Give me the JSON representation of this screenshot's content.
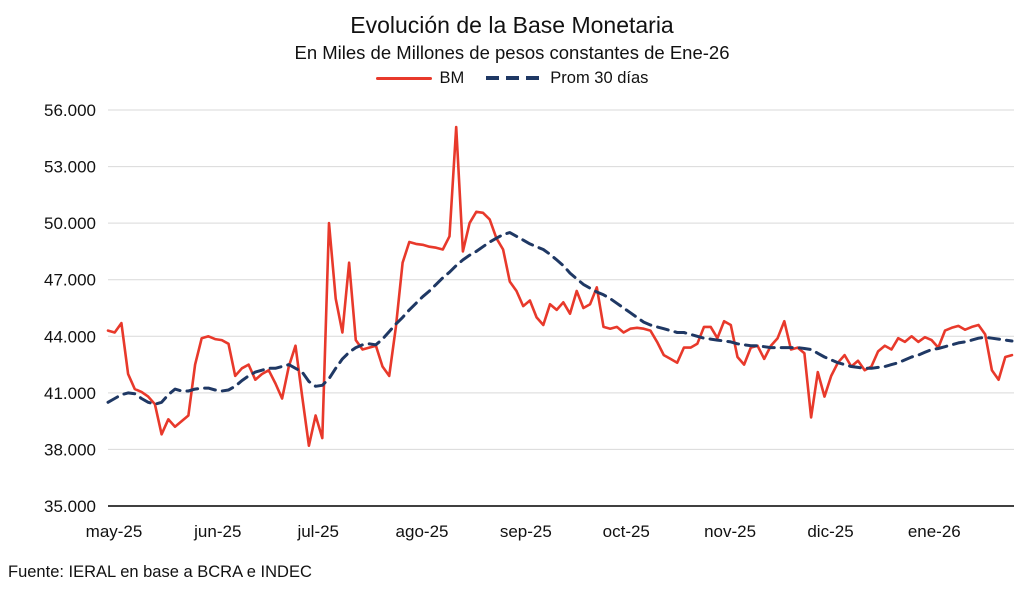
{
  "page": {
    "background": "#ffffff"
  },
  "header": {
    "title": "Evolución de la Base Monetaria",
    "subtitle": "En Miles de Millones de pesos constantes de Ene-26"
  },
  "footer": {
    "source": "Fuente: IERAL en base a BCRA e INDEC"
  },
  "colors": {
    "bm_red": "#E8392B",
    "prom_navy": "#1F3864",
    "gridline": "#D9D9D9",
    "axis_line": "#404040",
    "text": "#111111"
  },
  "chart_data": {
    "type": "line",
    "title": "Evolución de la Base Monetaria",
    "subtitle": "En Miles de Millones de pesos constantes de Ene-26",
    "grid": true,
    "legend_position": "top",
    "ylim": [
      35000,
      56000
    ],
    "y_ticks": [
      35000,
      38000,
      41000,
      44000,
      47000,
      50000,
      53000,
      56000
    ],
    "y_tick_labels": [
      "35.000",
      "38.000",
      "41.000",
      "44.000",
      "47.000",
      "50.000",
      "53.000",
      "56.000"
    ],
    "x_note": "daily series from may-2025 to late ene-2026, values estimated at 2-day resolution",
    "x_tick_labels": [
      "may-25",
      "jun-25",
      "jul-25",
      "ago-25",
      "sep-25",
      "oct-25",
      "nov-25",
      "dic-25",
      "ene-26"
    ],
    "x_tick_positions": [
      0,
      15.5,
      30.5,
      46,
      61.5,
      76.5,
      92,
      107,
      122.5
    ],
    "n_points": 136,
    "series": [
      {
        "name": "BM",
        "color": "#E8392B",
        "dash": "solid",
        "values": [
          44300,
          44200,
          44700,
          42000,
          41200,
          41050,
          40800,
          40400,
          38800,
          39600,
          39200,
          39500,
          39800,
          42500,
          43900,
          44000,
          43850,
          43800,
          43600,
          41900,
          42300,
          42500,
          41700,
          42000,
          42200,
          41500,
          40700,
          42400,
          43500,
          40800,
          38200,
          39800,
          38600,
          50000,
          46000,
          44200,
          47900,
          43800,
          43300,
          43400,
          43500,
          42400,
          41900,
          44500,
          47900,
          49000,
          48900,
          48850,
          48750,
          48700,
          48600,
          49300,
          55100,
          48500,
          50000,
          50600,
          50550,
          50200,
          49200,
          48600,
          46900,
          46400,
          45600,
          45900,
          45000,
          44600,
          45700,
          45400,
          45800,
          45200,
          46400,
          45500,
          45700,
          46600,
          44500,
          44400,
          44500,
          44200,
          44400,
          44450,
          44400,
          44300,
          43700,
          43000,
          42800,
          42600,
          43400,
          43400,
          43600,
          44500,
          44500,
          43900,
          44800,
          44600,
          42900,
          42500,
          43400,
          43500,
          42800,
          43500,
          43900,
          44800,
          43300,
          43400,
          43100,
          39700,
          42100,
          40800,
          41900,
          42600,
          43000,
          42400,
          42700,
          42200,
          42400,
          43200,
          43500,
          43300,
          43900,
          43700,
          44000,
          43700,
          43950,
          43800,
          43400,
          44300,
          44450,
          44550,
          44350,
          44500,
          44600,
          44100,
          42200,
          41700,
          42900,
          43000
        ]
      },
      {
        "name": "Prom 30 días",
        "color": "#1F3864",
        "dash": "dashed",
        "values": [
          40500,
          40700,
          40900,
          41000,
          40950,
          40700,
          40500,
          40400,
          40500,
          40900,
          41200,
          41100,
          41100,
          41200,
          41250,
          41250,
          41150,
          41100,
          41150,
          41350,
          41650,
          41900,
          42100,
          42200,
          42300,
          42300,
          42400,
          42500,
          42300,
          42100,
          41600,
          41350,
          41400,
          41750,
          42300,
          42800,
          43150,
          43400,
          43550,
          43600,
          43550,
          43850,
          44250,
          44650,
          45000,
          45400,
          45750,
          46100,
          46400,
          46750,
          47100,
          47400,
          47750,
          48050,
          48300,
          48500,
          48750,
          49000,
          49200,
          49400,
          49500,
          49300,
          49100,
          48900,
          48750,
          48600,
          48350,
          48050,
          47750,
          47350,
          47050,
          46750,
          46550,
          46350,
          46200,
          46000,
          45750,
          45500,
          45250,
          45000,
          44750,
          44600,
          44500,
          44400,
          44300,
          44200,
          44200,
          44100,
          44000,
          43900,
          43850,
          43800,
          43750,
          43700,
          43600,
          43550,
          43500,
          43500,
          43450,
          43400,
          43400,
          43400,
          43400,
          43400,
          43350,
          43300,
          43100,
          42900,
          42750,
          42600,
          42500,
          42400,
          42350,
          42300,
          42300,
          42350,
          42400,
          42500,
          42600,
          42750,
          42900,
          43000,
          43150,
          43300,
          43350,
          43450,
          43550,
          43650,
          43700,
          43800,
          43900,
          43950,
          43900,
          43850,
          43800,
          43750
        ]
      }
    ]
  }
}
